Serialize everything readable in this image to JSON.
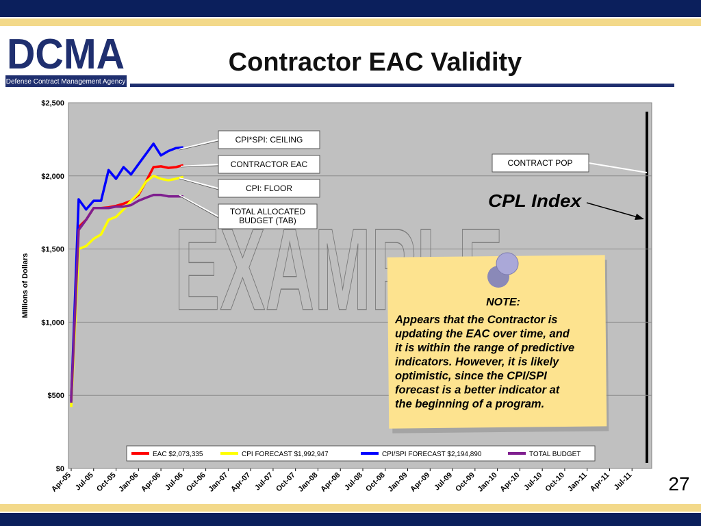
{
  "header": {
    "logo": "DCMA",
    "agency": "Defense Contract Management Agency",
    "title": "Contractor EAC Validity"
  },
  "page_number": "27",
  "chart_data": {
    "type": "line",
    "ylabel": "Millions of Dollars",
    "categories": [
      "Apr-05",
      null,
      null,
      "Jul-05",
      null,
      null,
      "Oct-05",
      null,
      null,
      "Jan-06",
      null,
      null,
      "Apr-06",
      null,
      null,
      "Jul-06",
      null,
      null,
      "Oct-06",
      null,
      null,
      "Jan-07",
      null,
      null,
      "Apr-07",
      null,
      null,
      "Jul-07",
      null,
      null,
      "Oct-07",
      null,
      null,
      "Jan-08",
      null,
      null,
      "Apr-08",
      null,
      null,
      "Jul-08",
      null,
      null,
      "Oct-08",
      null,
      null,
      "Jan-09",
      null,
      null,
      "Apr-09",
      null,
      null,
      "Jul-09",
      null,
      null,
      "Oct-09",
      null,
      null,
      "Jan-10",
      null,
      null,
      "Apr-10",
      null,
      null,
      "Jul-10",
      null,
      null,
      "Oct-10",
      null,
      null,
      "Jan-11",
      null,
      null,
      "Apr-11",
      null,
      null,
      "Jul-11",
      null,
      null
    ],
    "series": [
      {
        "name": "EAC $2,073,335",
        "color": "#ff0000",
        "values": [
          480,
          1650,
          1700,
          1780,
          1780,
          1785,
          1795,
          1810,
          1830,
          1870,
          1960,
          2060,
          2065,
          2055,
          2060,
          2073,
          null,
          null,
          null,
          null,
          null,
          null,
          null,
          null,
          null,
          null,
          null,
          null,
          null,
          null,
          null,
          null,
          null,
          null,
          null,
          null,
          null,
          null,
          null,
          null,
          null,
          null,
          null,
          null,
          null,
          null,
          null,
          null,
          null,
          null,
          null,
          null,
          null,
          null,
          null,
          null,
          null,
          null,
          null,
          null,
          null,
          null,
          null,
          null,
          null,
          null,
          null,
          null,
          null,
          null,
          null,
          null,
          null,
          null,
          null,
          null,
          null,
          null
        ]
      },
      {
        "name": "CPI FORECAST $1,992,947",
        "color": "#ffff00",
        "values": [
          420,
          1500,
          1520,
          1570,
          1600,
          1700,
          1720,
          1770,
          1830,
          1880,
          1960,
          2000,
          1980,
          1970,
          1980,
          1993,
          null,
          null,
          null,
          null,
          null,
          null,
          null,
          null,
          null,
          null,
          null,
          null,
          null,
          null,
          null,
          null,
          null,
          null,
          null,
          null,
          null,
          null,
          null,
          null,
          null,
          null,
          null,
          null,
          null,
          null,
          null,
          null,
          null,
          null,
          null,
          null,
          null,
          null,
          null,
          null,
          null,
          null,
          null,
          null,
          null,
          null,
          null,
          null,
          null,
          null,
          null,
          null,
          null,
          null,
          null,
          null,
          null,
          null,
          null,
          null,
          null,
          null
        ]
      },
      {
        "name": "CPI/SPI FORECAST $2,194,890",
        "color": "#0000ff",
        "values": [
          460,
          1840,
          1770,
          1830,
          1830,
          2040,
          1980,
          2060,
          2010,
          2080,
          2150,
          2220,
          2140,
          2170,
          2190,
          2195,
          null,
          null,
          null,
          null,
          null,
          null,
          null,
          null,
          null,
          null,
          null,
          null,
          null,
          null,
          null,
          null,
          null,
          null,
          null,
          null,
          null,
          null,
          null,
          null,
          null,
          null,
          null,
          null,
          null,
          null,
          null,
          null,
          null,
          null,
          null,
          null,
          null,
          null,
          null,
          null,
          null,
          null,
          null,
          null,
          null,
          null,
          null,
          null,
          null,
          null,
          null,
          null,
          null,
          null,
          null,
          null,
          null,
          null,
          null,
          null,
          null,
          null
        ]
      },
      {
        "name": "TOTAL BUDGET",
        "color": "#7f1f8f",
        "values": [
          450,
          1630,
          1700,
          1780,
          1780,
          1780,
          1790,
          1790,
          1800,
          1830,
          1850,
          1870,
          1870,
          1860,
          1860,
          1860,
          null,
          null,
          null,
          null,
          null,
          null,
          null,
          null,
          null,
          null,
          null,
          null,
          null,
          null,
          null,
          null,
          null,
          null,
          null,
          null,
          null,
          null,
          null,
          null,
          null,
          null,
          null,
          null,
          null,
          null,
          null,
          null,
          null,
          null,
          null,
          null,
          null,
          null,
          null,
          null,
          null,
          null,
          null,
          null,
          null,
          null,
          null,
          null,
          null,
          null,
          null,
          null,
          null,
          null,
          null,
          null,
          null,
          null,
          null,
          null,
          null,
          null
        ]
      }
    ],
    "ylim": [
      0,
      2500
    ],
    "yticks": [
      {
        "value": 0,
        "label": "$0"
      },
      {
        "value": 500,
        "label": "$500"
      },
      {
        "value": 1000,
        "label": "$1,000"
      },
      {
        "value": 1500,
        "label": "$1,500"
      },
      {
        "value": 2000,
        "label": "$2,000"
      },
      {
        "value": 2500,
        "label": "$2,500"
      }
    ],
    "grid": true,
    "legend": "bottom",
    "annotations": {
      "ceiling": "CPI*SPI: CEILING",
      "eac": "CONTRACTOR EAC",
      "floor": "CPI: FLOOR",
      "tab": [
        "TOTAL ALLOCATED",
        "BUDGET (TAB)"
      ],
      "pop": "CONTRACT POP",
      "cpl": "CPL Index",
      "watermark": "EXAMPLE"
    },
    "note": {
      "heading": "NOTE:",
      "lines": [
        "Appears that the Contractor is",
        "updating the EAC over time, and",
        "it is within the range of predictive",
        "indicators.  However, it is likely",
        "optimistic, since the CPI/SPI",
        "forecast is a better indicator at",
        "the beginning of a program."
      ]
    }
  }
}
